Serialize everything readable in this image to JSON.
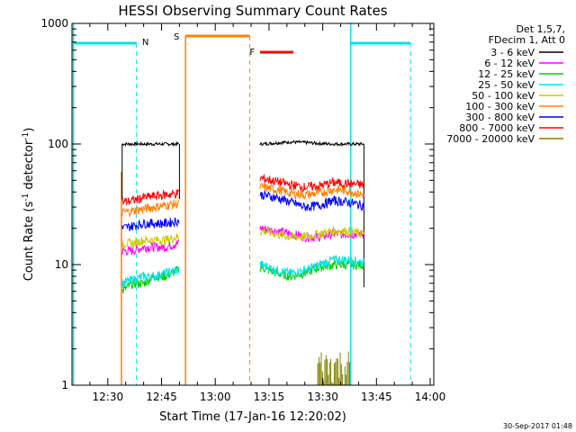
{
  "chart_data": {
    "type": "line",
    "title": "HESSI Observing Summary Count Rates",
    "xlabel": "Start Time (17-Jan-16 12:20:02)",
    "ylabel": "Count Rate (s",
    "ylabel_sup": "-1",
    "ylabel_mid": " detector",
    "ylabel_tail": ")",
    "y_scale": "log",
    "ylim": [
      1,
      1000
    ],
    "xlim": [
      0,
      101
    ],
    "x_unit": "minutes after 12:20:02",
    "x_ticks": [
      {
        "value": 10,
        "label": "12:30"
      },
      {
        "value": 25,
        "label": "12:45"
      },
      {
        "value": 40,
        "label": "13:00"
      },
      {
        "value": 55,
        "label": "13:15"
      },
      {
        "value": 70,
        "label": "13:30"
      },
      {
        "value": 85,
        "label": "13:45"
      },
      {
        "value": 100,
        "label": "14:00"
      }
    ],
    "y_ticks": [
      {
        "value": 1,
        "label": "1"
      },
      {
        "value": 10,
        "label": "10"
      },
      {
        "value": 100,
        "label": "100"
      },
      {
        "value": 1000,
        "label": "1000"
      }
    ],
    "legend_header": [
      "Det 1,5,7,",
      "FDecim 1, Att 0"
    ],
    "legend_position": "right",
    "segments": [
      [
        14,
        30
      ],
      [
        52.5,
        81.5
      ]
    ],
    "series": [
      {
        "name": "3 - 6 keV",
        "color": "#000000",
        "values": [
          100,
          100,
          100,
          100,
          100,
          100,
          100,
          102,
          104,
          103,
          101,
          100,
          100,
          100
        ]
      },
      {
        "name": "6 - 12 keV",
        "color": "#ff00ff",
        "values": [
          13,
          13,
          14,
          14,
          14,
          15,
          20,
          19,
          18,
          17,
          17,
          18,
          18,
          18
        ]
      },
      {
        "name": "12 - 25 keV",
        "color": "#00cc00",
        "values": [
          6,
          7,
          7,
          8,
          8,
          9,
          9.5,
          8.5,
          8,
          8.5,
          9.5,
          10,
          10,
          10
        ]
      },
      {
        "name": "25 - 50 keV",
        "color": "#00e5e5",
        "values": [
          7,
          7.5,
          8,
          8,
          8.5,
          9,
          10,
          9,
          8.5,
          9,
          10,
          11,
          11,
          10.5
        ]
      },
      {
        "name": "50 - 100 keV",
        "color": "#cccc00",
        "values": [
          15,
          15,
          16,
          16,
          16,
          17,
          19,
          18,
          17,
          17,
          18,
          19,
          19,
          18
        ]
      },
      {
        "name": "100 - 300 keV",
        "color": "#ff8000",
        "values": [
          27,
          28,
          29,
          30,
          31,
          32,
          44,
          42,
          39,
          38,
          39,
          42,
          41,
          38
        ]
      },
      {
        "name": "300 - 800 keV",
        "color": "#0000ff",
        "values": [
          20,
          21,
          22,
          22,
          22,
          23,
          38,
          36,
          33,
          30,
          31,
          34,
          33,
          31
        ]
      },
      {
        "name": "800 - 7000 keV",
        "color": "#ff0000",
        "values": [
          33,
          34,
          36,
          37,
          38,
          39,
          52,
          49,
          46,
          44,
          45,
          48,
          47,
          46
        ]
      },
      {
        "name": "7000 - 20000 keV",
        "color": "#808000",
        "values": [
          null,
          null,
          null,
          null,
          null,
          null,
          null,
          null,
          null,
          null,
          1.3,
          1.6,
          1.5,
          1.4
        ]
      }
    ],
    "series_x": [
      14,
      17,
      20,
      23,
      26,
      29.5,
      53,
      57,
      61,
      65,
      69,
      73,
      77,
      81
    ]
  },
  "annotations": {
    "night_label": "N",
    "saa_label": "S",
    "flare_label": "F",
    "night_color": "#00e5e5",
    "saa_color": "#ff8000",
    "flare_color": "#ff0000"
  },
  "footer_date": "30-Sep-2017 01:48"
}
